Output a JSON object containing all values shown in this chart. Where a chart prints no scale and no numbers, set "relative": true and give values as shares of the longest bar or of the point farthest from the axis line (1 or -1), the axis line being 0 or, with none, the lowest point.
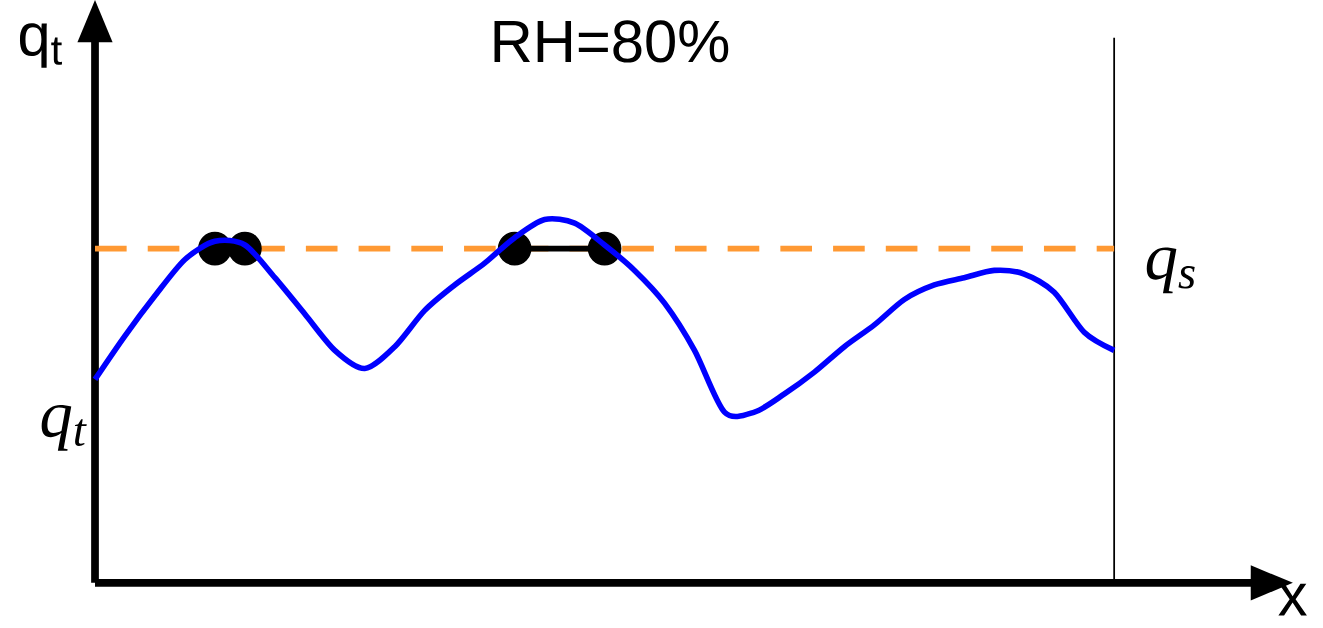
{
  "chart_data": {
    "type": "line",
    "relative": true,
    "title": "RH=80%",
    "xlabel": "x",
    "ylabel": "q$_{t}$",
    "categories": [
      null,
      null,
      null,
      null,
      null,
      null,
      null,
      null,
      null,
      null,
      null,
      null,
      null,
      null,
      null,
      null,
      null,
      null,
      null,
      null,
      null,
      null,
      null,
      null,
      null,
      null,
      null,
      null,
      null,
      null,
      null,
      null,
      null,
      null,
      null
    ],
    "series": [
      {
        "color": "#0000ff",
        "values": [
          0.56,
          0.68,
          0.79,
          0.89,
          0.94,
          0.93,
          0.84,
          0.74,
          0.64,
          0.59,
          0.65,
          0.75,
          0.82,
          0.88,
          0.95,
          1.0,
          0.99,
          0.93,
          0.86,
          0.77,
          0.64,
          0.47,
          0.47,
          0.52,
          0.58,
          0.65,
          0.71,
          0.78,
          0.82,
          0.84,
          0.86,
          0.85,
          0.8,
          0.69,
          0.64
        ]
      },
      {
        "color": "#000000",
        "type": "line",
        "marker": "circle",
        "values": [
          null,
          null,
          null,
          null,
          0.92,
          0.92,
          null,
          null,
          null,
          null,
          null,
          null,
          null,
          null,
          0.92,
          0.92,
          0.92,
          0.92,
          null,
          null,
          null,
          null,
          null,
          null,
          null,
          null,
          null,
          null,
          null,
          null,
          null,
          null,
          null,
          null,
          null
        ]
      }
    ],
    "ref_lines": [
      {
        "axis": "y",
        "value": 0.92,
        "label": "q$_{s}$",
        "color": "#ff9933",
        "line_style": "dashed"
      }
    ],
    "annotations": [
      "q$_{t}$"
    ]
  }
}
